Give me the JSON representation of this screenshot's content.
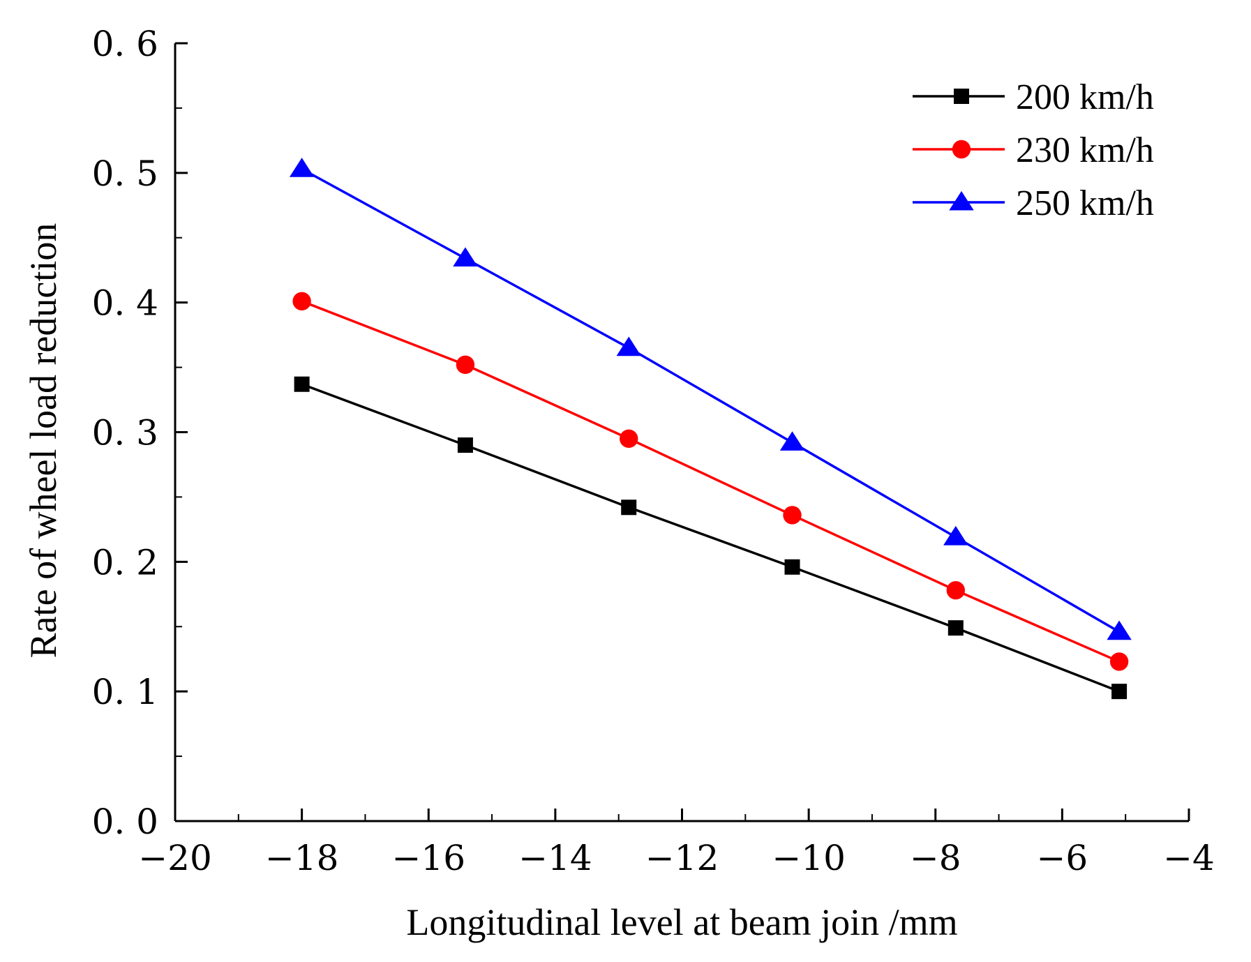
{
  "chart_data": {
    "type": "line",
    "title": "",
    "xlabel": "Longitudinal level at beam join /mm",
    "ylabel": "Rate of wheel load reduction",
    "xlim": [
      -20,
      -4
    ],
    "ylim": [
      0.0,
      0.6
    ],
    "xticks": [
      -20,
      -18,
      -16,
      -14,
      -12,
      -10,
      -8,
      -6,
      -4
    ],
    "xtick_labels": [
      "−20",
      "−18",
      "−16",
      "−14",
      "−12",
      "−10",
      "−8",
      "−6",
      "−4"
    ],
    "yticks": [
      0.0,
      0.1,
      0.2,
      0.3,
      0.4,
      0.5,
      0.6
    ],
    "ytick_labels": [
      "0. 0",
      "0. 1",
      "0. 2",
      "0. 3",
      "0. 4",
      "0. 5",
      "0. 6"
    ],
    "grid": false,
    "legend_position": "top-right",
    "x": [
      -18.0,
      -15.42,
      -12.84,
      -10.26,
      -7.68,
      -5.1
    ],
    "series": [
      {
        "name": "200 km/h",
        "color": "#000000",
        "marker": "square",
        "values": [
          0.337,
          0.29,
          0.242,
          0.196,
          0.149,
          0.1
        ]
      },
      {
        "name": "230 km/h",
        "color": "#ff0000",
        "marker": "circle",
        "values": [
          0.401,
          0.352,
          0.295,
          0.236,
          0.178,
          0.123
        ]
      },
      {
        "name": "250 km/h",
        "color": "#0000ff",
        "marker": "triangle",
        "values": [
          0.503,
          0.434,
          0.365,
          0.292,
          0.219,
          0.146
        ]
      }
    ]
  }
}
